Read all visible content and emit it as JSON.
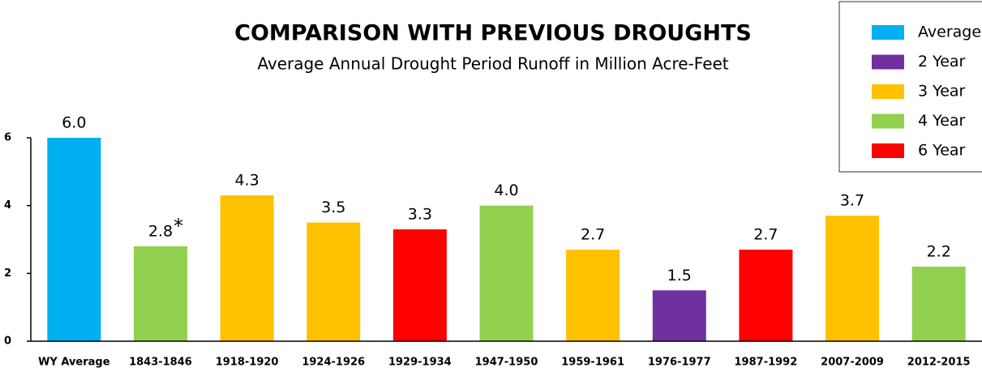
{
  "chart_data": {
    "type": "bar",
    "title": "COMPARISON WITH PREVIOUS DROUGHTS",
    "subtitle": "Average Annual Drought Period Runoff in Million Acre-Feet",
    "annotation": "*",
    "categories": [
      "WY Average",
      "1843-1846",
      "1918-1920",
      "1924-1926",
      "1929-1934",
      "1947-1950",
      "1959-1961",
      "1976-1977",
      "1987-1992",
      "2007-2009",
      "2012-2015"
    ],
    "series": [
      {
        "name": "Average",
        "color": "#00b0f0",
        "values": [
          6,
          null,
          null,
          null,
          null,
          null,
          null,
          null,
          null,
          null,
          null
        ],
        "value_labels": [
          "6.0",
          null,
          null,
          null,
          null,
          null,
          null,
          null,
          null,
          null,
          null
        ]
      },
      {
        "name": "2 Year",
        "color": "#7030a0",
        "values": [
          null,
          null,
          null,
          null,
          null,
          null,
          null,
          1.5,
          null,
          null,
          null
        ],
        "value_labels": [
          null,
          null,
          null,
          null,
          null,
          null,
          null,
          "1.5",
          null,
          null,
          null
        ]
      },
      {
        "name": "3 Year",
        "color": "#ffc000",
        "values": [
          null,
          null,
          4.3,
          3.5,
          null,
          null,
          2.7,
          null,
          null,
          3.7,
          null
        ],
        "value_labels": [
          null,
          null,
          "4.3",
          "3.5",
          null,
          null,
          "2.7",
          null,
          null,
          "3.7",
          null
        ]
      },
      {
        "name": "4 Year",
        "color": "#92d050",
        "values": [
          null,
          2.8,
          null,
          null,
          null,
          4,
          null,
          null,
          null,
          null,
          2.2
        ],
        "value_labels": [
          null,
          "2.8",
          null,
          null,
          null,
          "4.0",
          null,
          null,
          null,
          null,
          "2.2"
        ]
      },
      {
        "name": "6 Year",
        "color": "#ff0000",
        "values": [
          null,
          null,
          null,
          null,
          3.3,
          null,
          null,
          null,
          2.7,
          null,
          null
        ],
        "value_labels": [
          null,
          null,
          null,
          null,
          "3.3",
          null,
          null,
          null,
          "2.7",
          null,
          null
        ]
      }
    ],
    "ylim": [
      0,
      6
    ],
    "yticks": [
      0,
      2,
      4,
      6
    ],
    "grid": false,
    "legend": "top-right"
  }
}
